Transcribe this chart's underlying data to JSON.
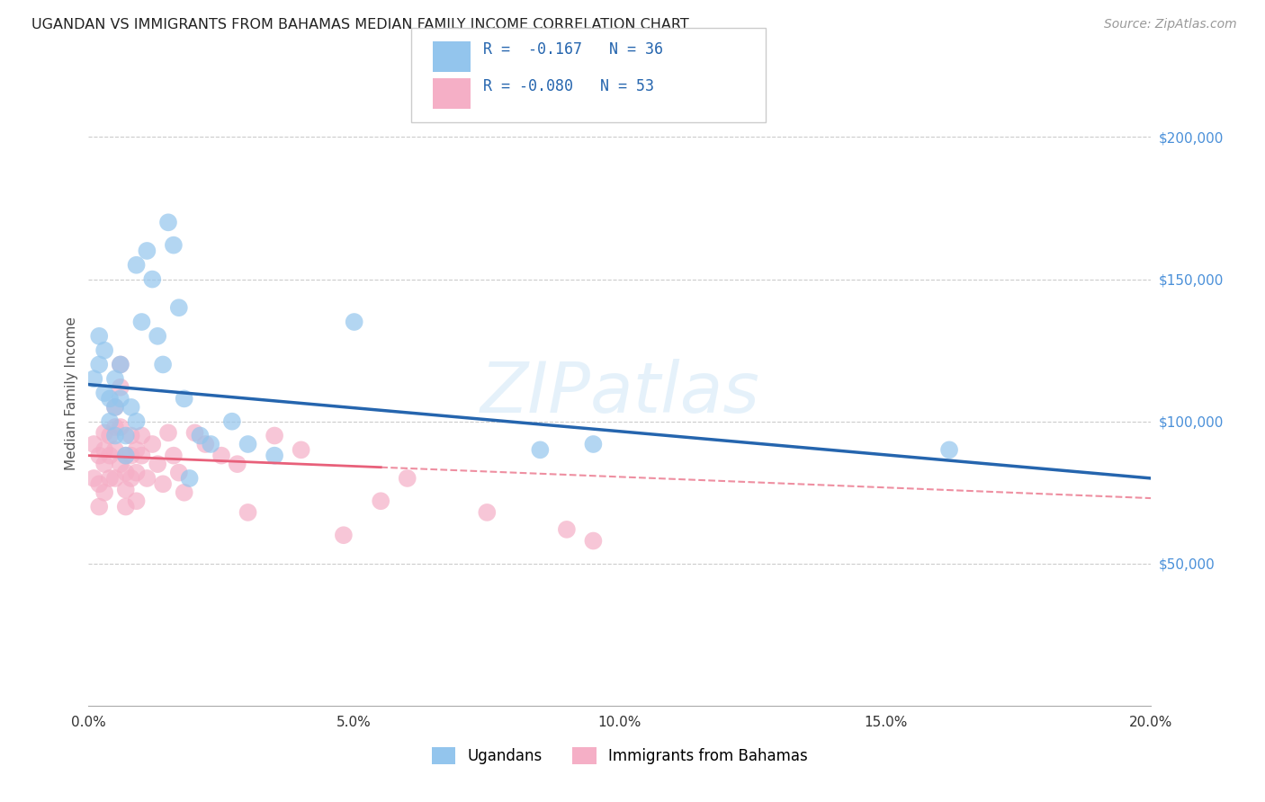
{
  "title": "UGANDAN VS IMMIGRANTS FROM BAHAMAS MEDIAN FAMILY INCOME CORRELATION CHART",
  "source": "Source: ZipAtlas.com",
  "ylabel_label": "Median Family Income",
  "xlim": [
    0.0,
    0.2
  ],
  "ylim": [
    0,
    220000
  ],
  "xtick_positions": [
    0.0,
    0.025,
    0.05,
    0.075,
    0.1,
    0.125,
    0.15,
    0.175,
    0.2
  ],
  "xticklabels": [
    "0.0%",
    "",
    "5.0%",
    "",
    "10.0%",
    "",
    "15.0%",
    "",
    "20.0%"
  ],
  "yticks_right": [
    50000,
    100000,
    150000,
    200000
  ],
  "ytick_labels_right": [
    "$50,000",
    "$100,000",
    "$150,000",
    "$200,000"
  ],
  "legend_R_blue": "-0.167",
  "legend_N_blue": "36",
  "legend_R_pink": "-0.080",
  "legend_N_pink": "53",
  "blue_scatter_color": "#93c5ed",
  "pink_scatter_color": "#f5afc6",
  "line_blue_color": "#2565ae",
  "line_pink_color": "#e8607a",
  "watermark_text": "ZIPatlas",
  "ugandan_x": [
    0.001,
    0.002,
    0.002,
    0.003,
    0.003,
    0.004,
    0.004,
    0.005,
    0.005,
    0.005,
    0.006,
    0.006,
    0.007,
    0.007,
    0.008,
    0.009,
    0.009,
    0.01,
    0.011,
    0.012,
    0.013,
    0.014,
    0.015,
    0.016,
    0.017,
    0.018,
    0.019,
    0.021,
    0.023,
    0.027,
    0.03,
    0.035,
    0.05,
    0.085,
    0.095,
    0.162
  ],
  "ugandan_y": [
    115000,
    130000,
    120000,
    125000,
    110000,
    108000,
    100000,
    115000,
    105000,
    95000,
    120000,
    108000,
    95000,
    88000,
    105000,
    155000,
    100000,
    135000,
    160000,
    150000,
    130000,
    120000,
    170000,
    162000,
    140000,
    108000,
    80000,
    95000,
    92000,
    100000,
    92000,
    88000,
    135000,
    90000,
    92000,
    90000
  ],
  "bahamas_x": [
    0.001,
    0.001,
    0.002,
    0.002,
    0.002,
    0.003,
    0.003,
    0.003,
    0.003,
    0.004,
    0.004,
    0.004,
    0.005,
    0.005,
    0.005,
    0.005,
    0.006,
    0.006,
    0.006,
    0.006,
    0.007,
    0.007,
    0.007,
    0.007,
    0.008,
    0.008,
    0.008,
    0.009,
    0.009,
    0.009,
    0.01,
    0.01,
    0.011,
    0.012,
    0.013,
    0.014,
    0.015,
    0.016,
    0.017,
    0.018,
    0.02,
    0.022,
    0.025,
    0.028,
    0.03,
    0.035,
    0.04,
    0.048,
    0.055,
    0.06,
    0.075,
    0.09,
    0.095
  ],
  "bahamas_y": [
    92000,
    80000,
    88000,
    78000,
    70000,
    96000,
    90000,
    85000,
    75000,
    95000,
    88000,
    80000,
    105000,
    98000,
    90000,
    80000,
    120000,
    112000,
    98000,
    85000,
    88000,
    82000,
    76000,
    70000,
    95000,
    88000,
    80000,
    90000,
    82000,
    72000,
    95000,
    88000,
    80000,
    92000,
    85000,
    78000,
    96000,
    88000,
    82000,
    75000,
    96000,
    92000,
    88000,
    85000,
    68000,
    95000,
    90000,
    60000,
    72000,
    80000,
    68000,
    62000,
    58000
  ]
}
